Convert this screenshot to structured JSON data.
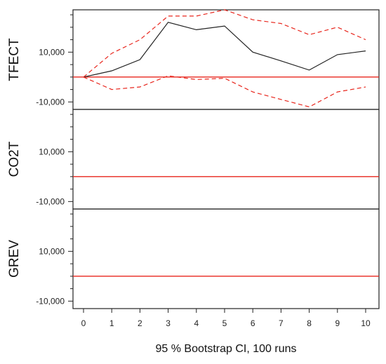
{
  "chart_data": {
    "type": "line",
    "x": [
      0,
      1,
      2,
      3,
      4,
      5,
      6,
      7,
      8,
      9,
      10
    ],
    "xlabel": "95 % Bootstrap CI,  100 runs",
    "x_ticks": [
      "0",
      "1",
      "2",
      "3",
      "4",
      "5",
      "6",
      "7",
      "8",
      "9",
      "10"
    ],
    "y_ticks": [
      -10000,
      10000
    ],
    "y_tick_labels": [
      "-10,000",
      "10,000"
    ],
    "ylim": [
      -13000,
      27000
    ],
    "panels": [
      {
        "name": "TFECT",
        "zero_line_color": "#e8261d",
        "series": [
          {
            "role": "response",
            "color": "#222222",
            "style": "solid",
            "values": [
              0,
              2500,
              7000,
              22000,
              19000,
              20500,
              10000,
              6500,
              2800,
              9000,
              10500
            ]
          },
          {
            "role": "upper",
            "color": "#e8261d",
            "style": "dashed",
            "values": [
              0,
              9500,
              15000,
              24500,
              24500,
              27000,
              23000,
              21500,
              17000,
              20000,
              15000
            ]
          },
          {
            "role": "lower",
            "color": "#e8261d",
            "style": "dashed",
            "values": [
              0,
              -5000,
              -4000,
              500,
              -1000,
              -500,
              -6000,
              -9000,
              -12000,
              -6000,
              -4000
            ]
          }
        ]
      },
      {
        "name": "CO2T",
        "zero_line_color": "#e8261d",
        "series": []
      },
      {
        "name": "GREV",
        "zero_line_color": "#e8261d",
        "series": []
      }
    ]
  }
}
